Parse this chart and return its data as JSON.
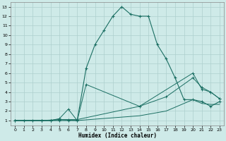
{
  "xlabel": "Humidex (Indice chaleur)",
  "background_color": "#ceeae8",
  "grid_color": "#aecfcd",
  "line_color": "#1a6e62",
  "xlim": [
    -0.5,
    23.5
  ],
  "ylim": [
    0.5,
    13.5
  ],
  "xticks": [
    0,
    1,
    2,
    3,
    4,
    5,
    6,
    7,
    8,
    9,
    10,
    11,
    12,
    13,
    14,
    15,
    16,
    17,
    18,
    19,
    20,
    21,
    22,
    23
  ],
  "yticks": [
    1,
    2,
    3,
    4,
    5,
    6,
    7,
    8,
    9,
    10,
    11,
    12,
    13
  ],
  "line1_x": [
    0,
    1,
    2,
    3,
    4,
    5,
    6,
    7,
    8,
    9,
    10,
    11,
    12,
    13,
    14,
    15,
    16,
    17,
    18,
    19,
    20,
    21,
    22,
    23
  ],
  "line1_y": [
    1,
    1,
    1,
    1,
    1,
    1,
    1,
    1,
    6.5,
    9,
    10.5,
    12,
    13,
    12.2,
    12,
    12,
    9,
    7.5,
    5.5,
    3.2,
    3.2,
    3.0,
    2.5,
    3.0
  ],
  "line2_x": [
    0,
    3,
    4,
    5,
    6,
    7,
    8,
    14,
    20,
    21,
    22,
    23
  ],
  "line2_y": [
    1,
    1,
    1,
    1.2,
    2.2,
    1.0,
    4.8,
    2.5,
    6.0,
    4.3,
    4.0,
    3.3
  ],
  "line3_x": [
    0,
    3,
    4,
    5,
    6,
    7,
    14,
    17,
    20,
    21,
    22,
    23
  ],
  "line3_y": [
    1,
    1,
    1,
    1.1,
    1.1,
    1.1,
    2.5,
    3.5,
    5.5,
    4.5,
    4.0,
    3.3
  ],
  "line4_x": [
    0,
    3,
    5,
    7,
    14,
    17,
    20,
    21,
    22,
    23
  ],
  "line4_y": [
    1,
    1,
    1.1,
    1.0,
    1.5,
    2.0,
    3.2,
    2.8,
    2.7,
    2.7
  ]
}
